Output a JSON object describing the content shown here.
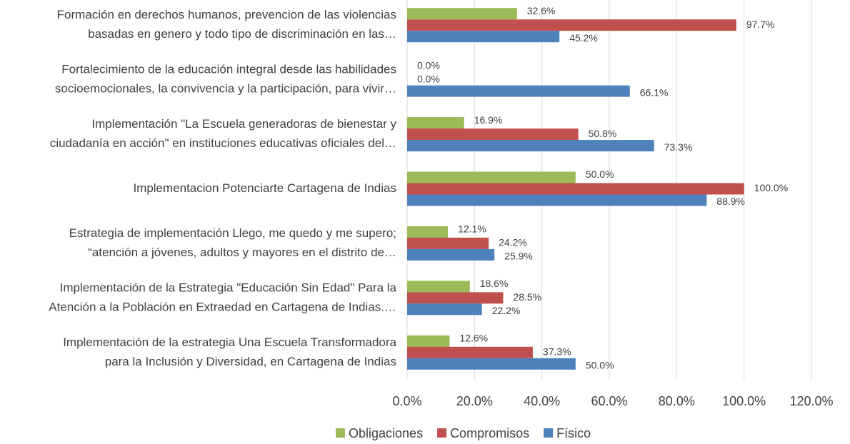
{
  "chart_data": {
    "type": "hbar",
    "categories": [
      [
        "Formación en derechos humanos, prevencion de las violencias",
        "basadas en genero y todo tipo de discriminación en las…"
      ],
      [
        "Fortalecimiento de la educación integral desde las habilidades",
        "socioemocionales, la convivencia y la participación, para vivir…"
      ],
      [
        "Implementación \"La Escuela generadoras de bienestar y",
        "ciudadanía en acción\" en instituciones educativas oficiales del…"
      ],
      [
        "Implementacion Potenciarte Cartagena de Indias"
      ],
      [
        "Estrategia de implementación Llego, me quedo y me supero;",
        "“atención a jóvenes, adultos y mayores en el distrito de…"
      ],
      [
        "Implementación de la Estrategia \"Educación Sin Edad\" Para la",
        "Atención a la Población en Extraedad en Cartagena de Indias.…"
      ],
      [
        "Implementación de la estrategia Una Escuela Transformadora",
        "para la Inclusión y Diversidad, en Cartagena de Indias"
      ]
    ],
    "series": [
      {
        "name": "Obligaciones",
        "color": "#9bbb59",
        "values": [
          32.6,
          0.0,
          16.9,
          50.0,
          12.1,
          18.6,
          12.6
        ],
        "value_labels": [
          "32.6%",
          "0.0%",
          "16.9%",
          "50.0%",
          "12.1%",
          "18.6%",
          "12.6%"
        ]
      },
      {
        "name": "Compromisos",
        "color": "#c0504d",
        "values": [
          97.7,
          0.0,
          50.8,
          100.0,
          24.2,
          28.5,
          37.3
        ],
        "value_labels": [
          "97.7%",
          "0.0%",
          "50.8%",
          "100.0%",
          "24.2%",
          "28.5%",
          "37.3%"
        ]
      },
      {
        "name": "Físico",
        "color": "#4f81bd",
        "values": [
          45.2,
          66.1,
          73.3,
          88.9,
          25.9,
          22.2,
          50.0
        ],
        "value_labels": [
          "45.2%",
          "66.1%",
          "73.3%",
          "88.9%",
          "25.9%",
          "22.2%",
          "50.0%"
        ]
      }
    ],
    "xlim": [
      0,
      120
    ],
    "xticks": [
      {
        "value": 0,
        "label": "0.0%"
      },
      {
        "value": 20,
        "label": "20.0%"
      },
      {
        "value": 40,
        "label": "40.0%"
      },
      {
        "value": 60,
        "label": "60.0%"
      },
      {
        "value": 80,
        "label": "80.0%"
      },
      {
        "value": 100,
        "label": "100.0%"
      },
      {
        "value": 120,
        "label": "120.0%"
      }
    ],
    "grid": true,
    "legend": "bottom"
  }
}
